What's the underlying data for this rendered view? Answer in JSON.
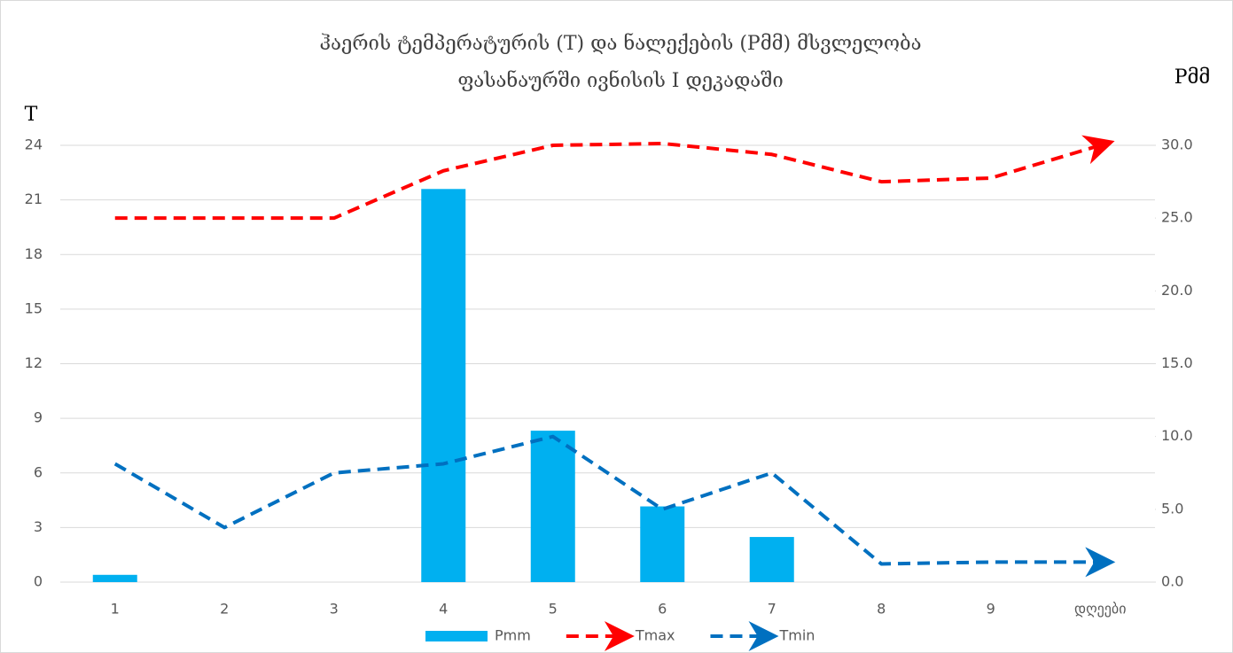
{
  "chart_data": {
    "type": "bar",
    "title": [
      "ჰაერის ტემპერატურის (T) და ნალექების (Pმმ)  მსვლელობა",
      "ფასანაურში ივნისის I დეკადაში"
    ],
    "y_label": "T",
    "y2_label": "Pმმ",
    "categories": [
      "1",
      "2",
      "3",
      "4",
      "5",
      "6",
      "7",
      "8",
      "9",
      "დღეები"
    ],
    "series": [
      {
        "name": "Pmm",
        "type": "bar",
        "axis": "y2",
        "color": "#00b0f0",
        "values": [
          0.5,
          0,
          0,
          27.0,
          10.4,
          5.2,
          3.1,
          0,
          0,
          0
        ]
      },
      {
        "name": "Tmax",
        "type": "line",
        "color": "#ff0000",
        "values": [
          20.0,
          20.0,
          20.0,
          22.6,
          24.0,
          24.1,
          23.5,
          22.0,
          22.2,
          24.0
        ]
      },
      {
        "name": "Tmin",
        "type": "line",
        "color": "#0070c0",
        "values": [
          6.5,
          3.0,
          6.0,
          6.5,
          8.0,
          4.0,
          6.0,
          1.0,
          1.1,
          1.1
        ]
      }
    ],
    "ylim": [
      0,
      24
    ],
    "yticks": [
      0,
      3,
      6,
      9,
      12,
      15,
      18,
      21,
      24
    ],
    "y2lim": [
      0,
      30
    ],
    "y2ticks": [
      {
        "value": 0,
        "label": "0.0"
      },
      {
        "value": 5,
        "label": "5.0"
      },
      {
        "value": 10,
        "label": "10.0"
      },
      {
        "value": 15,
        "label": "15.0"
      },
      {
        "value": 20,
        "label": "20.0"
      },
      {
        "value": 25,
        "label": "25.0"
      },
      {
        "value": 30,
        "label": "30.0"
      }
    ],
    "grid": true,
    "legend": "bottom"
  }
}
